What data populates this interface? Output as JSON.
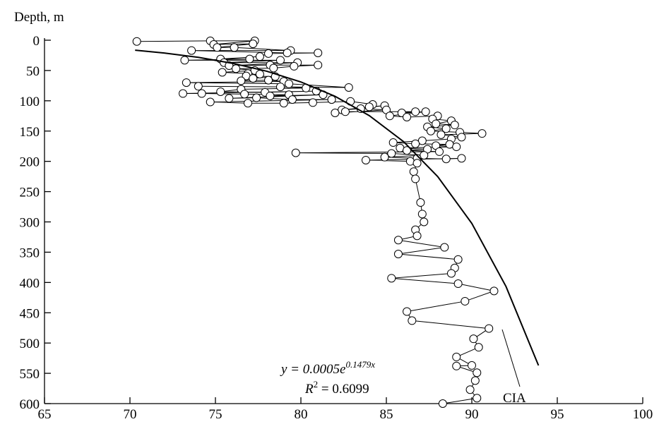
{
  "chart_data": {
    "type": "scatter",
    "y_axis_label": "Depth, m",
    "xlim": [
      65,
      100
    ],
    "xticks": [
      65,
      70,
      75,
      80,
      85,
      90,
      95,
      100
    ],
    "ylim": [
      0,
      600
    ],
    "yticks": [
      0,
      50,
      100,
      150,
      200,
      250,
      300,
      350,
      400,
      450,
      500,
      550,
      600
    ],
    "y_inverted": true,
    "series": [
      {
        "color": "#000000",
        "marker": "circle",
        "connected": true,
        "x": [
          70.4,
          74.7,
          77.3,
          74.9,
          77.2,
          75.1,
          76.1,
          79.4,
          73.6,
          79.2,
          81.0,
          78.1,
          77.6,
          75.3,
          77.0,
          73.2,
          78.8,
          75.5,
          79.8,
          75.8,
          78.2,
          81.0,
          79.6,
          78.4,
          76.2,
          77.3,
          75.4,
          76.9,
          77.6,
          76.8,
          78.5,
          77.2,
          76.5,
          78.1,
          79.0,
          73.3,
          79.3,
          82.8,
          74.0,
          78.8,
          80.3,
          76.5,
          75.3,
          77.9,
          80.9,
          73.1,
          74.2,
          76.7,
          79.3,
          78.2,
          81.3,
          75.8,
          77.4,
          79.5,
          81.8,
          74.7,
          76.9,
          79.0,
          80.7,
          82.9,
          84.2,
          84.0,
          84.9,
          82.4,
          83.5,
          85.0,
          82.0,
          82.6,
          86.7,
          85.9,
          87.3,
          85.2,
          86.2,
          88.0,
          87.7,
          88.8,
          87.9,
          89.0,
          87.4,
          88.5,
          87.6,
          89.3,
          90.6,
          88.2,
          89.4,
          88.8,
          87.1,
          85.4,
          86.7,
          88.7,
          87.9,
          89.1,
          85.8,
          87.4,
          86.2,
          88.1,
          79.7,
          85.3,
          87.2,
          84.9,
          86.8,
          88.5,
          89.4,
          83.8,
          86.4,
          86.8,
          86.6,
          86.7,
          87.0,
          87.1,
          87.2,
          86.7,
          86.8,
          85.7,
          88.4,
          85.7,
          89.2,
          89.0,
          88.8,
          85.3,
          89.2,
          91.3,
          89.6,
          86.2,
          86.5,
          91.0,
          90.1,
          90.4,
          89.1,
          90.0,
          89.1,
          90.3,
          90.2,
          89.9,
          90.3,
          88.3
        ],
        "values": [
          2,
          1,
          1,
          7,
          6,
          12,
          12,
          17,
          17,
          21,
          21,
          22,
          27,
          31,
          31,
          33,
          33,
          37,
          37,
          42,
          41,
          41,
          43,
          46,
          47,
          50,
          53,
          55,
          56,
          59,
          60,
          63,
          67,
          66,
          68,
          70,
          72,
          78,
          76,
          77,
          79,
          81,
          85,
          86,
          84,
          88,
          88,
          89,
          90,
          92,
          90,
          96,
          95,
          98,
          98,
          102,
          104,
          104,
          103,
          101,
          106,
          110,
          108,
          115,
          113,
          115,
          120,
          118,
          118,
          120,
          118,
          125,
          127,
          125,
          130,
          133,
          138,
          140,
          143,
          146,
          150,
          152,
          154,
          156,
          160,
          163,
          166,
          169,
          171,
          172,
          174,
          176,
          178,
          180,
          182,
          184,
          186,
          187,
          190,
          193,
          195,
          196,
          195,
          198,
          200,
          203,
          217,
          229,
          268,
          287,
          300,
          313,
          323,
          330,
          342,
          353,
          362,
          376,
          385,
          393,
          402,
          414,
          431,
          448,
          463,
          476,
          493,
          507,
          523,
          537,
          538,
          549,
          562,
          577,
          591,
          600
        ]
      },
      {
        "color": "#000000",
        "marker": "none",
        "connected": true,
        "line_width": 2,
        "x": [
          70.3,
          72,
          74,
          76,
          78,
          80,
          82,
          84,
          86,
          88,
          90,
          92,
          93.9
        ],
        "values": [
          16.4,
          21.1,
          28.3,
          38.1,
          51.2,
          68.9,
          92.6,
          124.5,
          167.3,
          225,
          302.5,
          406.7,
          537
        ]
      }
    ],
    "annotations": {
      "equation": {
        "base": "y = 0.0005e",
        "exponent": "0.1479x"
      },
      "r_squared": {
        "symbol": "R",
        "power": "2",
        "rest": " = 0.6099"
      },
      "curve_label": "CIA"
    }
  }
}
